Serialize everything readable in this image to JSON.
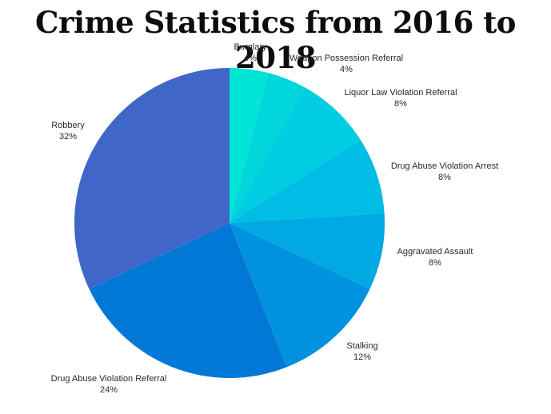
{
  "chart_data": {
    "type": "pie",
    "title": "Crime Statistics from 2016 to 2018",
    "slices": [
      {
        "label": "Burglary",
        "value": 4,
        "value_label": "4%",
        "color": "#00e5d6"
      },
      {
        "label": "Weapon Possession Referral",
        "value": 4,
        "value_label": "4%",
        "color": "#00d6dc"
      },
      {
        "label": "Liquor Law Violation Referral",
        "value": 8,
        "value_label": "8%",
        "color": "#00cde1"
      },
      {
        "label": "Drug Abuse Violation Arrest",
        "value": 8,
        "value_label": "8%",
        "color": "#00bde5"
      },
      {
        "label": "Aggravated Assault",
        "value": 8,
        "value_label": "8%",
        "color": "#00a9e2"
      },
      {
        "label": "Stalking",
        "value": 12,
        "value_label": "12%",
        "color": "#0092de"
      },
      {
        "label": "Drug Abuse Violation Referral",
        "value": 24,
        "value_label": "24%",
        "color": "#0278d6"
      },
      {
        "label": "Robbery",
        "value": 32,
        "value_label": "32%",
        "color": "#4066c8"
      }
    ],
    "start_angle_deg": 0,
    "direction": "clockwise",
    "legend": "none"
  }
}
